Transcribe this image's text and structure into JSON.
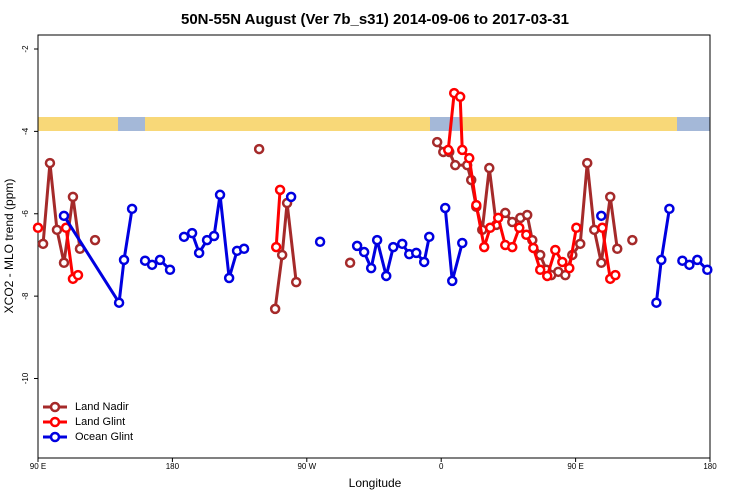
{
  "chart_data": {
    "type": "line",
    "title": "50N-55N August (Ver 7b_s31)   2014-09-06 to 2017-03-31",
    "x_label": "Longitude",
    "y_label": "XCO2 - MLO trend (ppm)",
    "xlim": [
      90,
      540
    ],
    "ylim": [
      -11.93,
      -1.66
    ],
    "xticks": [
      {
        "value": 90,
        "label": "90 E"
      },
      {
        "value": 180,
        "label": "180"
      },
      {
        "value": 270,
        "label": "90 W"
      },
      {
        "value": 360,
        "label": "0"
      },
      {
        "value": 450,
        "label": "90 E"
      },
      {
        "value": 540,
        "label": "180"
      }
    ],
    "yticks": [
      -2,
      -4,
      -6,
      -8,
      -10
    ],
    "legend": "lower left",
    "series": [
      {
        "name": "Land Nadir",
        "color": "#a52a2a",
        "x": [
          93.4,
          98,
          102.7,
          107.4,
          113.4,
          118.1,
          null,
          128.2,
          null,
          238.1,
          null,
          248.8,
          253.5,
          256.8,
          262.9,
          null,
          299,
          null,
          357.3,
          361.4,
          365.4,
          369.4,
          377.4,
          380.1,
          383.5,
          387.5,
          392.2,
          396.9,
          402.9,
          407.6,
          413,
          417.6,
          421,
          426.3,
          430.4,
          433.7,
          438.4,
          443.1,
          447.8,
          453.1,
          457.8,
          462.5,
          467.2,
          473.2,
          477.9,
          null,
          488
        ],
        "values": [
          -6.73,
          -4.77,
          -6.39,
          -7.19,
          -5.59,
          -6.85,
          null,
          -6.64,
          null,
          -4.43,
          null,
          -8.31,
          -7.0,
          -5.74,
          -7.66,
          null,
          -7.19,
          null,
          -4.26,
          -4.5,
          -4.5,
          -4.82,
          -4.82,
          -5.18,
          -5.83,
          -6.39,
          -4.89,
          -6.27,
          -5.98,
          -6.2,
          -6.1,
          -6.03,
          -6.64,
          -7.0,
          -7.36,
          -7.49,
          -7.41,
          -7.49,
          -7.0,
          -6.73,
          -4.77,
          -6.39,
          -7.19,
          -5.59,
          -6.85,
          null,
          -6.64
        ]
      },
      {
        "name": "Land Glint",
        "color": "#ff0000",
        "x": [
          90,
          null,
          108.8,
          113.4,
          116.8,
          null,
          249.5,
          252.1,
          null,
          364.7,
          368.7,
          372.7,
          374.1,
          378.8,
          383.5,
          388.8,
          392.8,
          398.2,
          402.9,
          407.6,
          412.3,
          417,
          421.7,
          426.3,
          431,
          436.4,
          441.1,
          445.8,
          450.5,
          null,
          467.9,
          473.2,
          476.6
        ],
        "values": [
          -6.34,
          null,
          -6.34,
          -7.58,
          -7.49,
          null,
          -6.81,
          -5.42,
          null,
          -4.45,
          -3.07,
          -3.16,
          -4.45,
          -4.65,
          -5.79,
          -6.81,
          -6.34,
          -6.1,
          -6.76,
          -6.81,
          -6.34,
          -6.51,
          -6.83,
          -7.36,
          -7.51,
          -6.88,
          -7.17,
          -7.32,
          -6.34,
          null,
          -6.34,
          -7.58,
          -7.49
        ]
      },
      {
        "name": "Ocean Glint",
        "color": "#0000e0",
        "x": [
          107.4,
          144.3,
          147.6,
          153,
          null,
          161.7,
          166.4,
          171.7,
          178.4,
          null,
          187.8,
          193.2,
          197.9,
          203.2,
          207.9,
          211.9,
          218,
          223.3,
          228,
          null,
          259.5,
          null,
          278.9,
          null,
          303.7,
          308.4,
          313.1,
          317.1,
          323.2,
          327.9,
          333.9,
          338.6,
          343.3,
          348.6,
          352,
          null,
          362.7,
          367.4,
          374.1,
          null,
          467.2,
          null,
          504.1,
          507.4,
          512.8,
          null,
          521.5,
          526.2,
          531.5,
          538.2
        ],
        "values": [
          -6.05,
          -8.16,
          -7.12,
          -5.88,
          null,
          -7.14,
          -7.24,
          -7.12,
          -7.36,
          null,
          -6.56,
          -6.47,
          -6.95,
          -6.64,
          -6.54,
          -5.54,
          -7.56,
          -6.9,
          -6.85,
          null,
          -5.59,
          null,
          -6.68,
          null,
          -6.78,
          -6.93,
          -7.32,
          -6.64,
          -7.51,
          -6.81,
          -6.73,
          -6.98,
          -6.95,
          -7.17,
          -6.56,
          null,
          -5.86,
          -7.63,
          -6.71,
          null,
          -6.05,
          null,
          -8.16,
          -7.12,
          -5.88,
          null,
          -7.14,
          -7.24,
          -7.12,
          -7.36
        ]
      }
    ]
  }
}
